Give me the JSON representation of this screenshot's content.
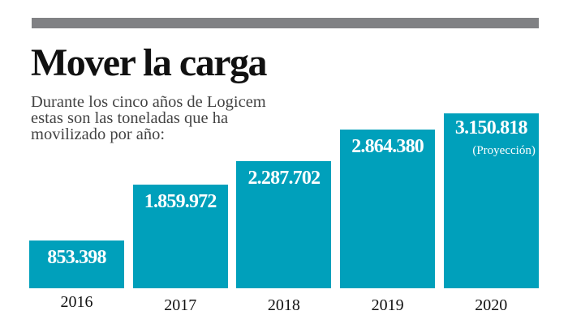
{
  "colors": {
    "bar": "#00a0bb",
    "rule": "#808184"
  },
  "chart_data": {
    "type": "bar",
    "title": "Mover la carga",
    "subtitle": "Durante los cinco años de Logicem estas son las toneladas que ha movilizado por año:",
    "categories": [
      "2016",
      "2017",
      "2018",
      "2019",
      "2020"
    ],
    "values": [
      853398,
      1859972,
      2287702,
      2864380,
      3150818
    ],
    "labels": [
      "853.398",
      "1.859.972",
      "2.287.702",
      "2.864.380",
      "3.150.818"
    ],
    "annotations": [
      {
        "category": "2020",
        "text": "(Proyección)"
      }
    ],
    "ylim": [
      0,
      3150818
    ],
    "grid": false,
    "legend": "none"
  }
}
